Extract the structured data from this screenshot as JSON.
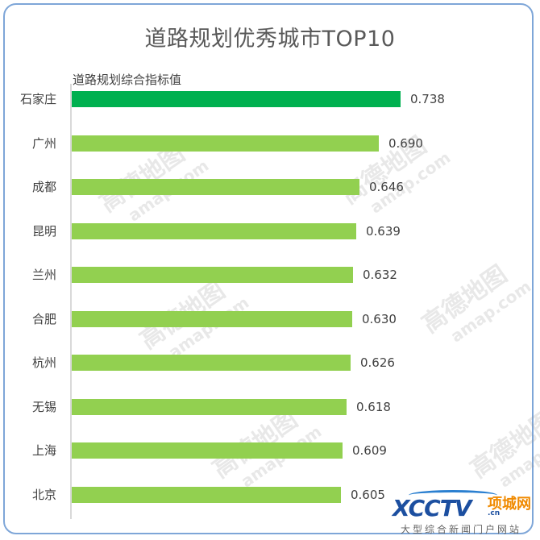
{
  "title": "道路规划优秀城市TOP10",
  "series_label": "道路规划综合指标值",
  "colors": {
    "top_bar": "#00b050",
    "bar": "#92d050",
    "frame": "#7ea6d8",
    "text": "#404040"
  },
  "watermark": {
    "text": "高德地图",
    "sub": "amap.com"
  },
  "logo": {
    "main": "XCCTV",
    "cn": ".cn",
    "name": "项城网",
    "tagline": "大型综合新闻门户网站"
  },
  "chart_data": {
    "type": "bar",
    "orientation": "horizontal",
    "title": "道路规划优秀城市TOP10",
    "xlabel": "",
    "ylabel": "",
    "legend": [
      "道路规划综合指标值"
    ],
    "categories": [
      "石家庄",
      "广州",
      "成都",
      "昆明",
      "兰州",
      "合肥",
      "杭州",
      "无锡",
      "上海",
      "北京"
    ],
    "values": [
      0.738,
      0.69,
      0.646,
      0.639,
      0.632,
      0.63,
      0.626,
      0.618,
      0.609,
      0.605
    ],
    "value_labels": [
      "0.738",
      "0.690",
      "0.646",
      "0.639",
      "0.632",
      "0.630",
      "0.626",
      "0.618",
      "0.609",
      "0.605"
    ],
    "grid": false,
    "highlight_index": 0
  }
}
